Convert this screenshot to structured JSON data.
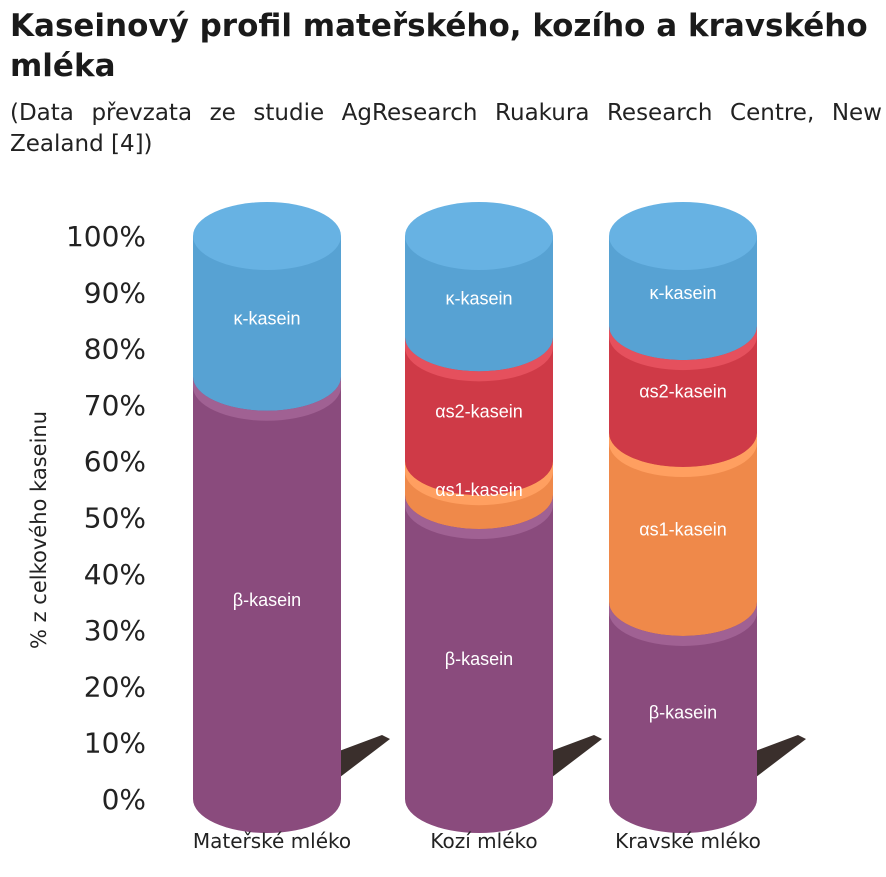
{
  "title": "Kaseinový profil mateřského, kozího a kravského mléka",
  "subtitle": "(Data převzata ze studie AgResearch Ruakura Research Centre, New Zealand [4])",
  "colors": {
    "beta": "#8a4b7d",
    "as1": "#ef894a",
    "as2": "#cf3a47",
    "kappa": "#57a2d3",
    "shadow": "#3a2f2c",
    "text": "#222222"
  },
  "chart_data": {
    "type": "bar",
    "stacked": true,
    "style": "3d-cylinder",
    "ylabel": "% z celkového kaseinu",
    "ylim": [
      0,
      100
    ],
    "yticks": [
      "0%",
      "10%",
      "20%",
      "30%",
      "40%",
      "50%",
      "60%",
      "70%",
      "80%",
      "90%",
      "100%"
    ],
    "categories": [
      "Mateřské mléko",
      "Kozí mléko",
      "Kravské mléko"
    ],
    "series": [
      {
        "name": "β-kasein",
        "key": "beta",
        "values": [
          75,
          54,
          35
        ]
      },
      {
        "name": "αs1-kasein",
        "key": "as1",
        "values": [
          0,
          6,
          30
        ]
      },
      {
        "name": "αs2-kasein",
        "key": "as2",
        "values": [
          0,
          22,
          19
        ]
      },
      {
        "name": "κ-kasein",
        "key": "kappa",
        "values": [
          25,
          18,
          16
        ]
      }
    ],
    "segment_labels": [
      [
        "β-kasein",
        "",
        "",
        "κ-kasein"
      ],
      [
        "β-kasein",
        "αs1-kasein",
        "αs2-kasein",
        "κ-kasein"
      ],
      [
        "β-kasein",
        "αs1-kasein",
        "αs2-kasein",
        "κ-kasein"
      ]
    ]
  }
}
